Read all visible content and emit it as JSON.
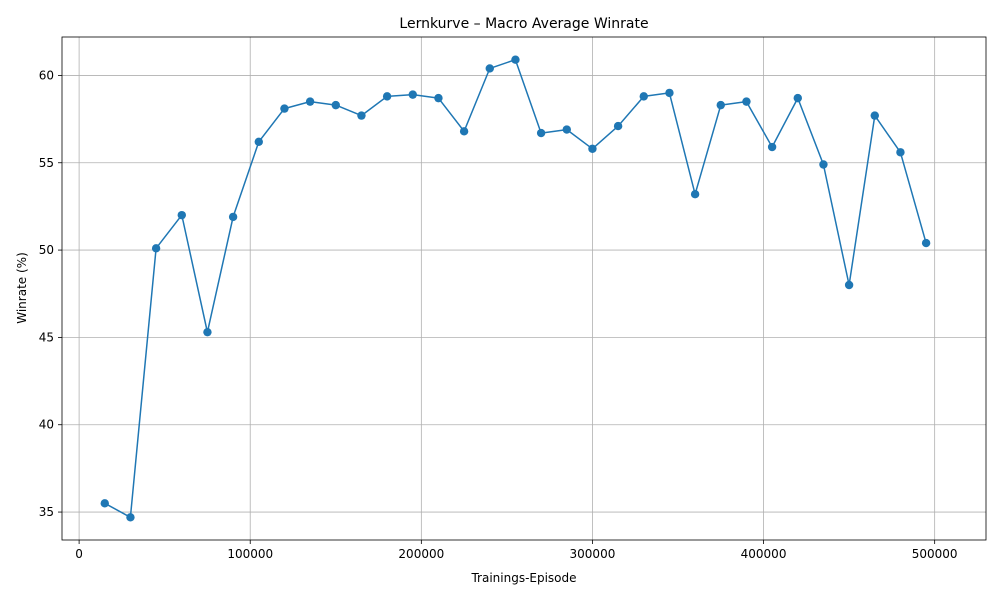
{
  "chart_data": {
    "type": "line",
    "title": "Lernkurve – Macro Average Winrate",
    "xlabel": "Trainings-Episode",
    "ylabel": "Winrate (%)",
    "xlim": [
      -10000,
      530000
    ],
    "ylim": [
      33.4,
      62.2
    ],
    "xticks": [
      0,
      100000,
      200000,
      300000,
      400000,
      500000
    ],
    "yticks": [
      35,
      40,
      45,
      50,
      55,
      60
    ],
    "xtick_labels": [
      "0",
      "100000",
      "200000",
      "300000",
      "400000",
      "500000"
    ],
    "ytick_labels": [
      "35",
      "40",
      "45",
      "50",
      "55",
      "60"
    ],
    "grid": true,
    "color": "#1f77b4",
    "marker": "circle",
    "x": [
      15000,
      30000,
      45000,
      60000,
      75000,
      90000,
      105000,
      120000,
      135000,
      150000,
      165000,
      180000,
      195000,
      210000,
      225000,
      240000,
      255000,
      270000,
      285000,
      300000,
      315000,
      330000,
      345000,
      360000,
      375000,
      390000,
      405000,
      420000,
      435000,
      450000,
      465000,
      480000,
      495000
    ],
    "y": [
      35.5,
      34.7,
      50.1,
      52.0,
      45.3,
      51.9,
      56.2,
      58.1,
      58.5,
      58.3,
      57.7,
      58.8,
      58.9,
      58.7,
      56.8,
      60.4,
      60.9,
      56.7,
      56.9,
      55.8,
      57.1,
      58.8,
      59.0,
      53.2,
      58.3,
      58.5,
      55.9,
      58.7,
      54.9,
      48.0,
      57.7,
      55.6,
      50.4
    ]
  }
}
